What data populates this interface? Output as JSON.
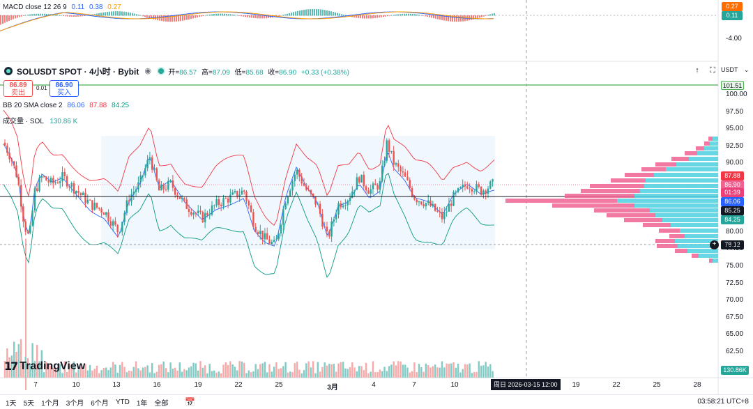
{
  "macd": {
    "label": "MACD close 12 26 9",
    "values": [
      "0.11",
      "0.38",
      "0.27"
    ],
    "value_colors": [
      "#2962ff",
      "#2962ff",
      "#ff9800"
    ],
    "axis_tags": [
      "0.27",
      "0.11"
    ],
    "axis_tag_colors": [
      "#ff6d00",
      "#26a69a"
    ],
    "axis_label": "-4.00"
  },
  "symbol": {
    "title": "SOLUSDT SPOT · 4小时 · Bybit",
    "ohlc": [
      {
        "label": "开=",
        "value": "86.57"
      },
      {
        "label": "高=",
        "value": "87.09"
      },
      {
        "label": "低=",
        "value": "85.68"
      },
      {
        "label": "收=",
        "value": "86.90"
      }
    ],
    "change": "+0.33 (+0.38%)"
  },
  "trade": {
    "sell_price": "86.89",
    "sell_label": "卖出",
    "spread": "0.01",
    "buy_price": "86.90",
    "buy_label": "买入"
  },
  "bb": {
    "label": "BB 20 SMA close 2",
    "values": [
      "86.06",
      "87.88",
      "84.25"
    ],
    "colors": [
      "#2962ff",
      "#f23645",
      "#089981"
    ]
  },
  "volume": {
    "label": "成交量 · SOL",
    "value": "130.86 K",
    "axis_tag": "130.86K"
  },
  "currency": "USDT",
  "price_axis": [
    "100.00",
    "97.50",
    "95.00",
    "92.50",
    "90.00",
    "80.00",
    "77.50",
    "75.00",
    "72.50",
    "70.00",
    "67.50",
    "65.00",
    "62.50"
  ],
  "price_tags": [
    {
      "text": "101.51",
      "color": "#4caf50",
      "text_color": "#131722"
    },
    {
      "text": "87.88",
      "color": "#f23645",
      "text_color": "#ffffff"
    },
    {
      "text": "86.90",
      "color": "#f06292",
      "text_color": "#ffffff"
    },
    {
      "text": "01:39",
      "color": "#ec407a",
      "text_color": "#ffffff"
    },
    {
      "text": "86.06",
      "color": "#2962ff",
      "text_color": "#ffffff"
    },
    {
      "text": "85.25",
      "color": "#131722",
      "text_color": "#ffffff"
    },
    {
      "text": "84.25",
      "color": "#26a69a",
      "text_color": "#ffffff"
    },
    {
      "text": "78.12",
      "color": "#131722",
      "text_color": "#ffffff"
    }
  ],
  "time_axis": [
    "7",
    "10",
    "13",
    "16",
    "19",
    "22",
    "25",
    "3月",
    "4",
    "7",
    "10",
    "19",
    "22",
    "25",
    "28"
  ],
  "crosshair_time": "周日 2026-03-15   12:00",
  "logo": "TradingView",
  "ranges": [
    "1天",
    "5天",
    "1个月",
    "3个月",
    "6个月",
    "YTD",
    "1年",
    "全部"
  ],
  "clock": "03:58:21 UTC+8",
  "colors": {
    "up": "#26a69a",
    "down": "#ef5350",
    "bb_upper": "#f23645",
    "bb_basis": "#2962ff",
    "bb_lower": "#089981",
    "bb_fill": "#e3f2fd",
    "macd_line": "#2962ff",
    "signal_line": "#ff9800",
    "vp_up": "#4dd0e1",
    "vp_down": "#f06292"
  },
  "icons": [
    "eye-icon",
    "up-arrow-icon",
    "fullscreen-icon",
    "chevron-down-icon",
    "calendar-range-icon",
    "plus-icon",
    "tradingview-logo"
  ]
}
